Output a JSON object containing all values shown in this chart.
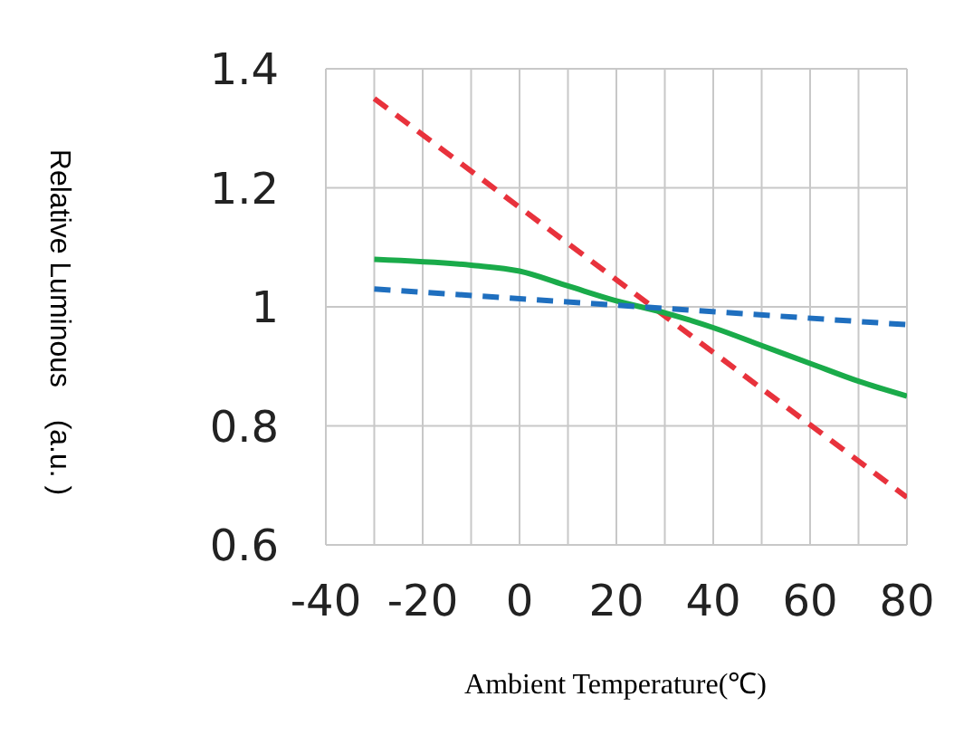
{
  "chart_data": {
    "type": "line",
    "xlabel": "Ambient Temperature(℃)",
    "ylabel": "Relative Luminous    (a.u. )",
    "xlim": [
      -40,
      80
    ],
    "xticks": [
      -40,
      {
        "value": -30,
        "label": null
      },
      -20,
      {
        "value": -10,
        "label": null
      },
      0,
      {
        "value": 10,
        "label": null
      },
      20,
      {
        "value": 30,
        "label": null
      },
      40,
      {
        "value": 50,
        "label": null
      },
      60,
      {
        "value": 70,
        "label": null
      },
      80
    ],
    "ylim": [
      0.6,
      1.4
    ],
    "yticks": [
      0.6,
      0.8,
      1,
      1.2,
      1.4
    ],
    "grid": true,
    "marker": "none",
    "series": [
      {
        "color": "#e8323c",
        "line_style": "dashed",
        "x": [
          -30,
          80
        ],
        "values": [
          1.35,
          0.68
        ]
      },
      {
        "color": "#1aab4a",
        "line_style": "solid",
        "x": [
          -30,
          -10,
          0,
          10,
          20,
          30,
          40,
          50,
          60,
          70,
          80
        ],
        "values": [
          1.08,
          1.07,
          1.06,
          1.035,
          1.01,
          0.99,
          0.965,
          0.935,
          0.905,
          0.875,
          0.85
        ]
      },
      {
        "color": "#1f6fbf",
        "line_style": "dashed",
        "x": [
          -30,
          80
        ],
        "values": [
          1.03,
          0.97
        ]
      }
    ]
  }
}
